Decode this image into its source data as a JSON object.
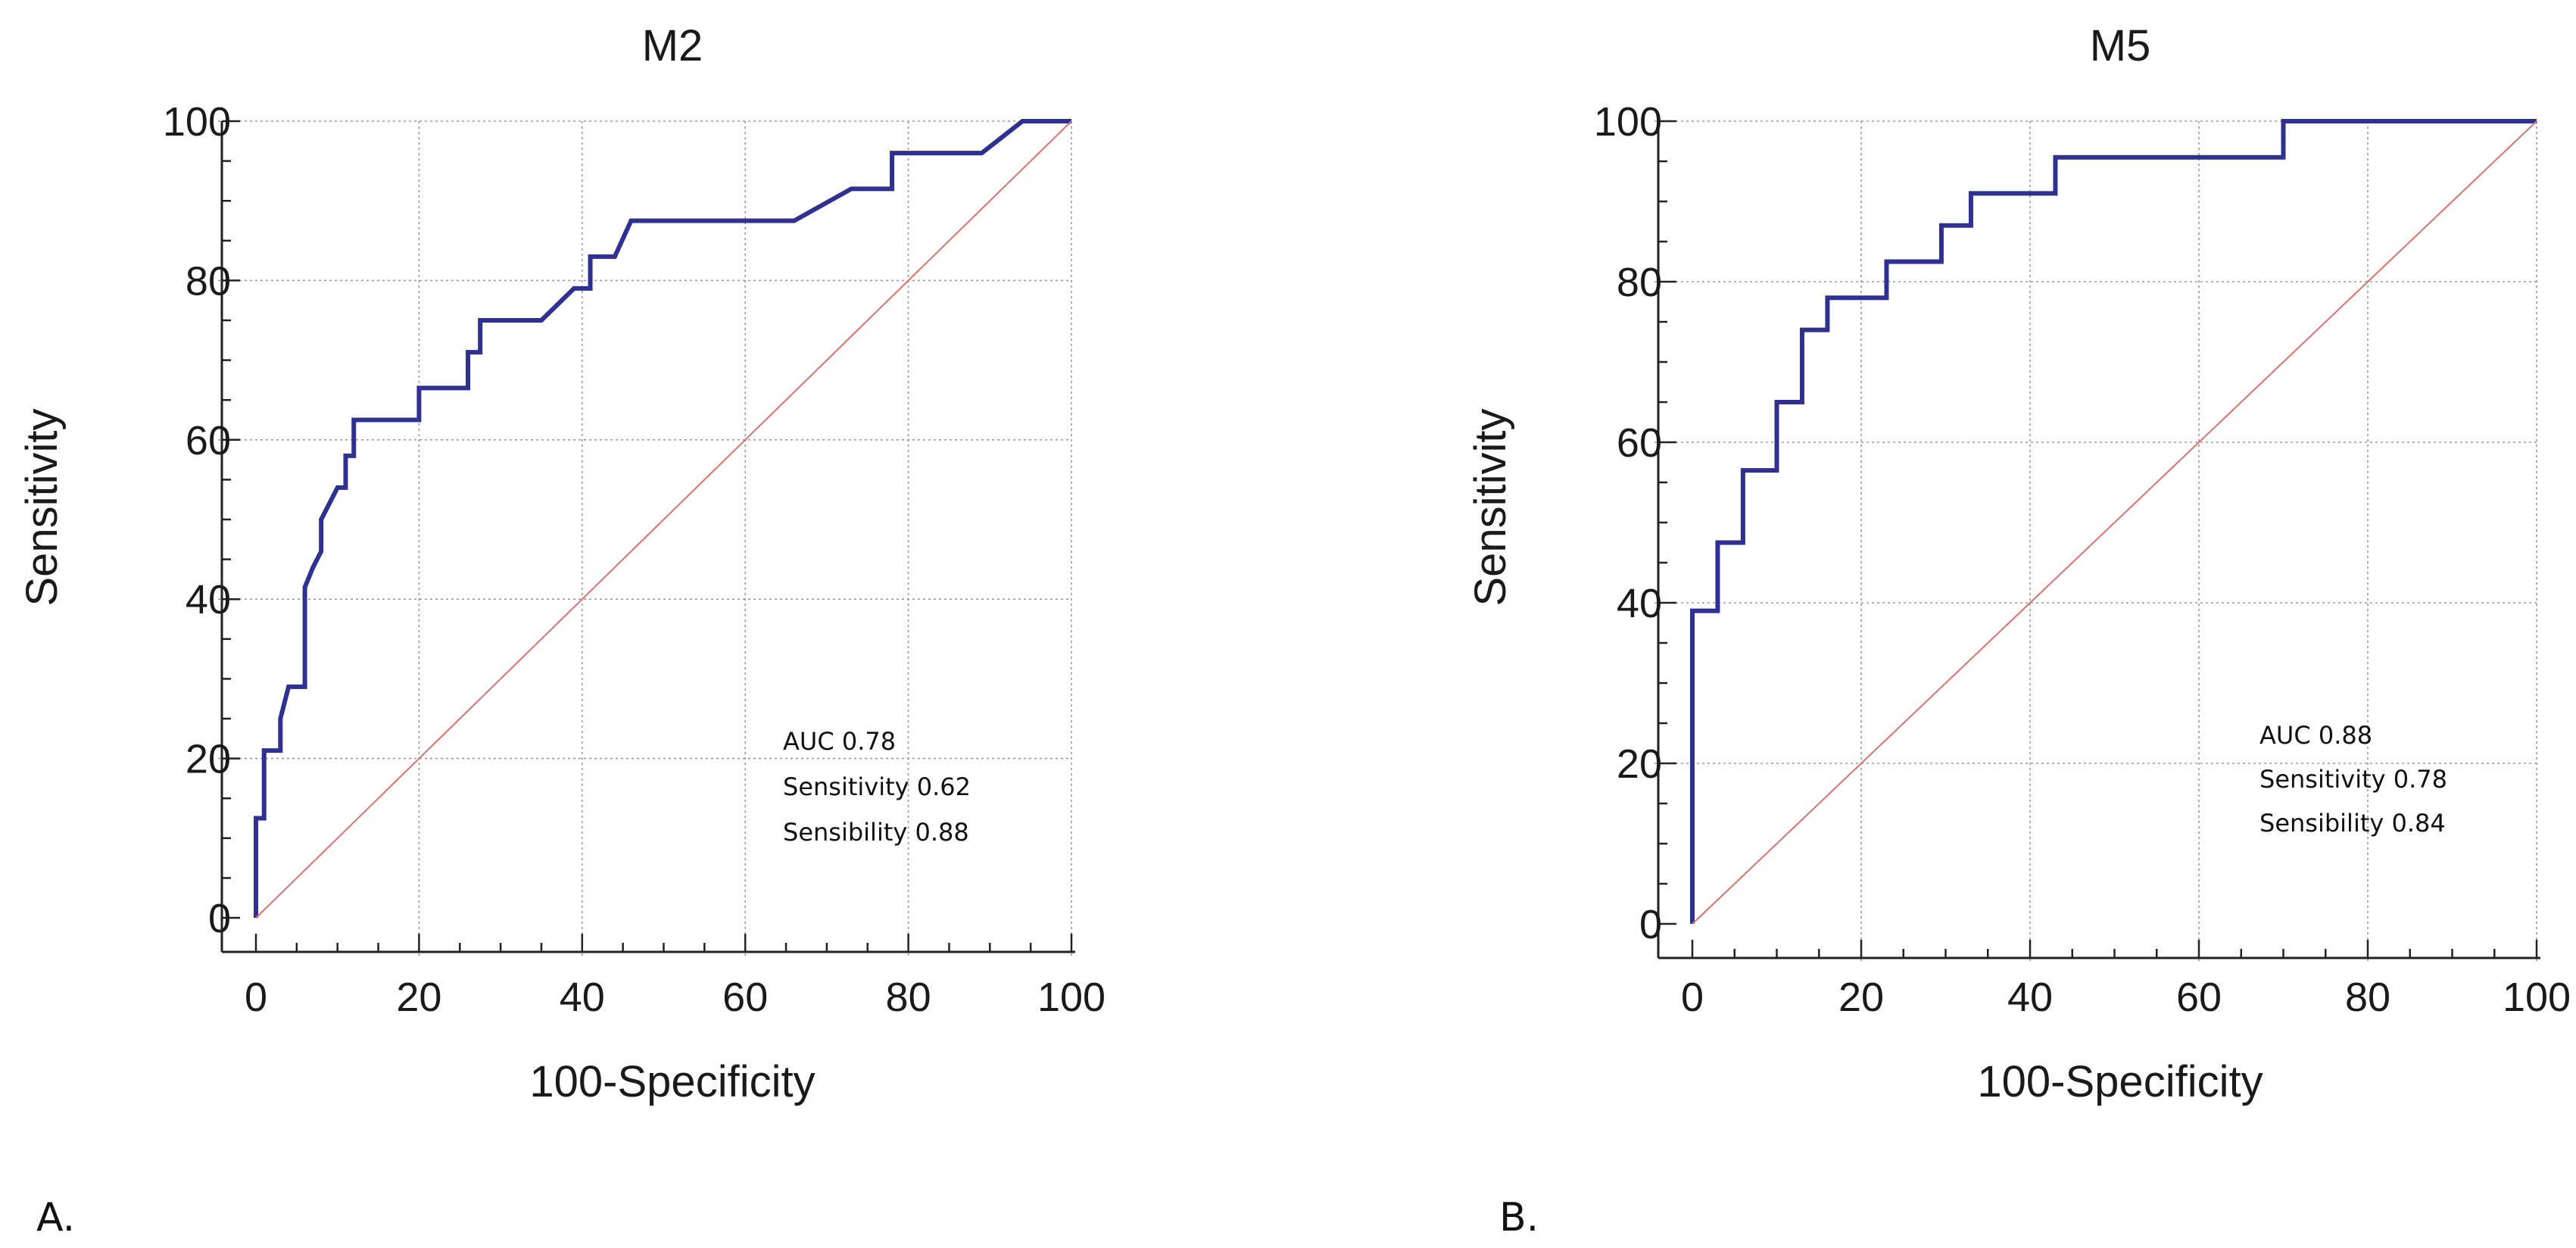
{
  "colors": {
    "roc": "#2f3192",
    "reference": "#e0706e"
  },
  "panels": [
    {
      "letter": "A."
    },
    {
      "letter": "B."
    }
  ],
  "chart_data": [
    {
      "type": "line",
      "title": "M2",
      "xlabel": "100-Specificity",
      "ylabel": "Sensitivity",
      "xlim": [
        0,
        100
      ],
      "ylim": [
        0,
        100
      ],
      "xticks": [
        0,
        20,
        40,
        60,
        80,
        100
      ],
      "yticks": [
        0,
        20,
        40,
        60,
        80,
        100
      ],
      "grid": true,
      "annotations": [
        "AUC 0.78",
        "Sensitivity 0.62",
        "Sensibility 0.88"
      ],
      "series": [
        {
          "x": [
            0,
            0,
            1,
            1,
            3,
            3,
            4,
            4,
            6,
            6,
            7,
            8,
            8,
            9,
            10,
            10,
            11,
            11,
            12,
            12,
            20,
            20,
            26,
            26,
            27.5,
            27.5,
            35,
            39,
            41,
            41,
            44,
            44,
            46,
            46,
            66,
            73,
            77,
            77,
            78,
            78,
            89,
            94,
            100
          ],
          "y": [
            0,
            12.5,
            12.5,
            21,
            21,
            25,
            29,
            29,
            29,
            41.5,
            44,
            46,
            50,
            52,
            54,
            54,
            54,
            58,
            58,
            62.5,
            62.5,
            66.5,
            66.5,
            71,
            71,
            75,
            75,
            79,
            79,
            83,
            83,
            83,
            87.5,
            87.5,
            87.5,
            91.5,
            91.5,
            91.5,
            91.5,
            96,
            96,
            100,
            100
          ]
        },
        {
          "role": "reference",
          "x": [
            0,
            100
          ],
          "y": [
            0,
            100
          ]
        }
      ]
    },
    {
      "type": "line",
      "title": "M5",
      "xlabel": "100-Specificity",
      "ylabel": "Sensitivity",
      "xlim": [
        0,
        100
      ],
      "ylim": [
        0,
        100
      ],
      "xticks": [
        0,
        20,
        40,
        60,
        80,
        100
      ],
      "yticks": [
        0,
        20,
        40,
        60,
        80,
        100
      ],
      "grid": true,
      "annotations": [
        "AUC 0.88",
        "Sensitivity 0.78",
        "Sensibility 0.84"
      ],
      "series": [
        {
          "x": [
            0,
            0,
            3,
            3,
            6,
            6,
            10,
            10,
            13,
            13,
            16,
            16,
            20,
            20,
            23,
            23,
            29.5,
            29.5,
            33,
            33,
            35.5,
            35.5,
            43,
            43,
            70,
            70,
            100
          ],
          "y": [
            0,
            39,
            39,
            47.5,
            47.5,
            56.5,
            56.5,
            65,
            65,
            74,
            74,
            78,
            78,
            78,
            78,
            82.5,
            82.5,
            87,
            87,
            91,
            91,
            91,
            91,
            95.5,
            95.5,
            100,
            100
          ]
        },
        {
          "role": "reference",
          "x": [
            0,
            100
          ],
          "y": [
            0,
            100
          ]
        }
      ]
    }
  ]
}
